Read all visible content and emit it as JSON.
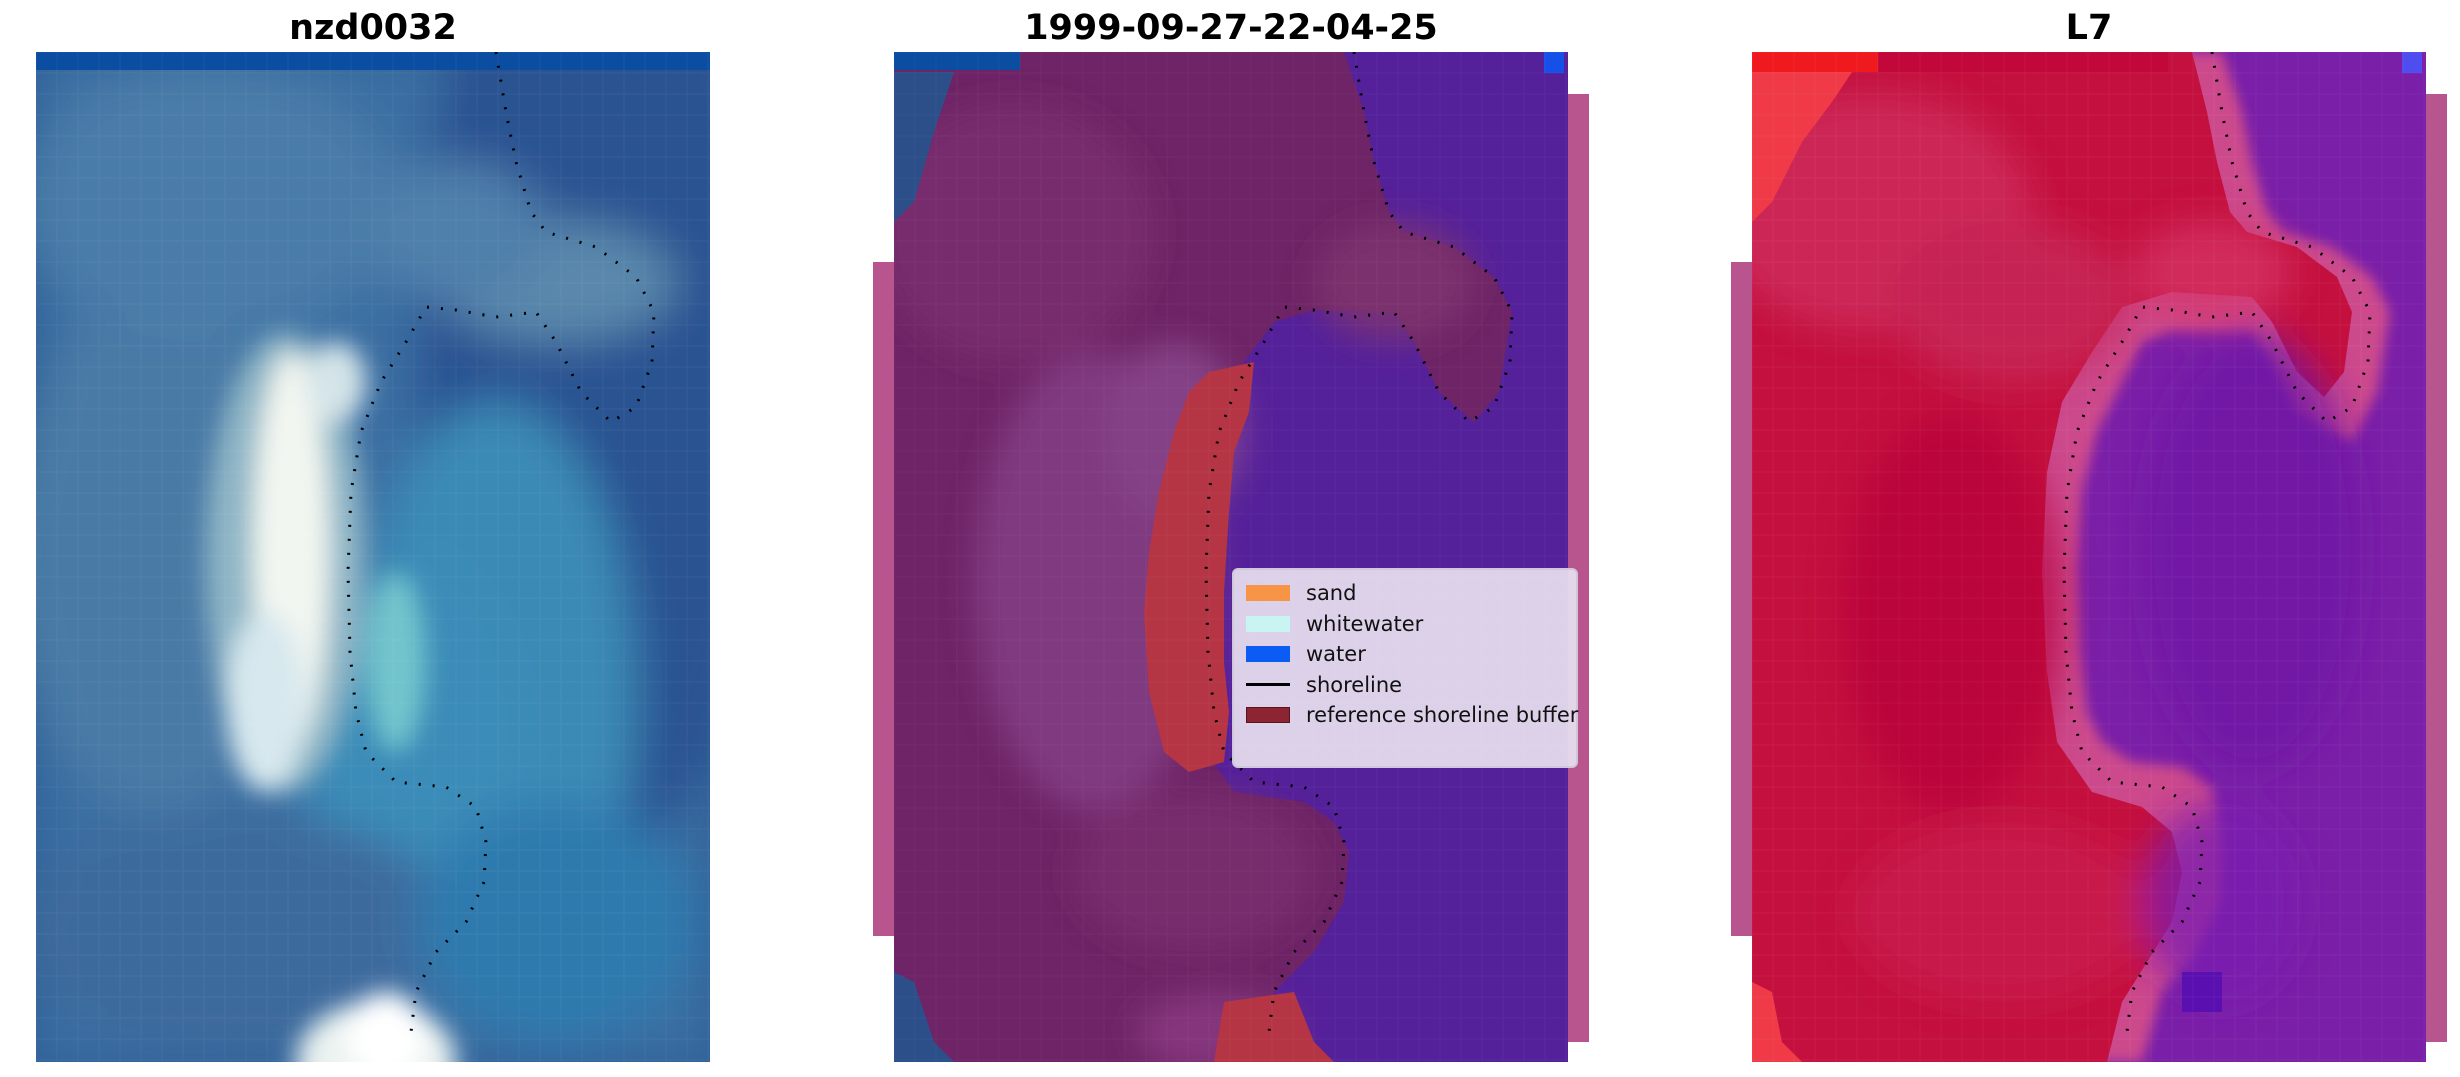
{
  "panels": [
    {
      "title": "nzd0032"
    },
    {
      "title": "1999-09-27-22-04-25"
    },
    {
      "title": "L7"
    }
  ],
  "legend": {
    "items": [
      {
        "label": "sand",
        "color": "#f89446",
        "kind": "patch"
      },
      {
        "label": "whitewater",
        "color": "#c8f4f4",
        "kind": "patch"
      },
      {
        "label": "water",
        "color": "#0a5cf5",
        "kind": "patch"
      },
      {
        "label": "shoreline",
        "color": "#000000",
        "kind": "line"
      },
      {
        "label": "reference shoreline buffer",
        "color": "#8c2432",
        "kind": "patch"
      }
    ]
  },
  "colors": {
    "water_rgb_light": "#3a86b4",
    "water_rgb_dark": "#23488a",
    "whitewater_rgb": "#eef3ee",
    "class_land_purple": "#6e2466",
    "class_water_purple": "#55219a",
    "class_buffer_red": "#b53545",
    "index_red": "#c4103e",
    "index_purple": "#7a1fa8",
    "side_strip": "#b8558e",
    "top_band_blue": "#0b4da0"
  }
}
